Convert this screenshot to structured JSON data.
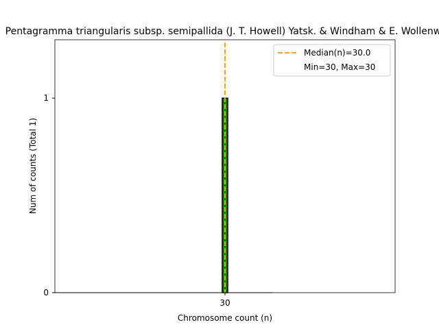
{
  "chart_data": {
    "type": "bar",
    "title": "Pentagramma triangularis subsp. semipallida (J. T. Howell) Yatsk. & Windham & E. Wollenw.",
    "xlabel": "Chromosome count (n)",
    "ylabel": "Num of counts     (Total 1)",
    "x_ticks": [
      30
    ],
    "y_ticks": [
      0,
      1
    ],
    "xlim": [
      25,
      35
    ],
    "ylim": [
      0,
      1.3
    ],
    "bars": [
      {
        "x": 30,
        "count": 1
      }
    ],
    "median": 30.0,
    "min": 30,
    "max": 30,
    "legend": {
      "position": "top-right",
      "entries": [
        {
          "label": "Median(n)=30.0",
          "style": "dashed",
          "color": "#ffa500"
        },
        {
          "label": "Min=30, Max=30",
          "style": "none"
        }
      ]
    },
    "colors": {
      "bar_fill": "#008000",
      "bar_edge": "#000000",
      "median_line": "#ffa500"
    }
  }
}
